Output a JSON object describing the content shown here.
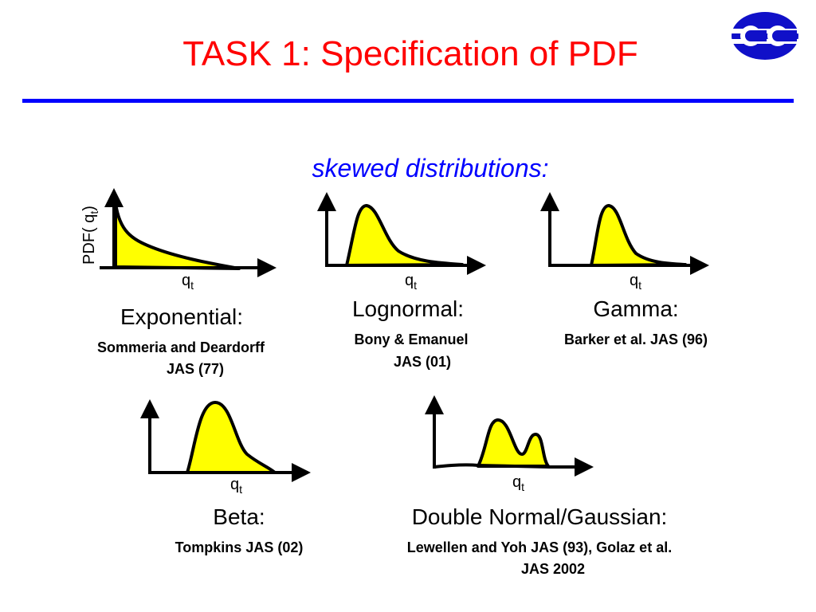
{
  "header": {
    "title": "TASK 1: Specification of PDF",
    "subtitle": "skewed distributions:"
  },
  "y_axis_label": {
    "base": "PDF( q",
    "sub": "t",
    "close": ")"
  },
  "panels": [
    {
      "x_label": {
        "base": "q",
        "sub": "t"
      },
      "name": "Exponential:",
      "reference": [
        "Sommeria and Deardorff",
        "JAS (77)"
      ]
    },
    {
      "x_label": {
        "base": "q",
        "sub": "t"
      },
      "name": "Lognormal:",
      "reference": [
        "Bony & Emanuel",
        "JAS (01)"
      ]
    },
    {
      "x_label": {
        "base": "q",
        "sub": "t"
      },
      "name": "Gamma:",
      "reference": [
        "Barker et al. JAS (96)"
      ]
    },
    {
      "x_label": {
        "base": "q",
        "sub": "t"
      },
      "name": "Beta:",
      "reference": [
        "Tompkins JAS (02)"
      ]
    },
    {
      "x_label": {
        "base": "q",
        "sub": "t"
      },
      "name": "Double Normal/Gaussian:",
      "reference": [
        "Lewellen and Yoh JAS (93), Golaz et al.",
        "JAS 2002"
      ]
    }
  ]
}
